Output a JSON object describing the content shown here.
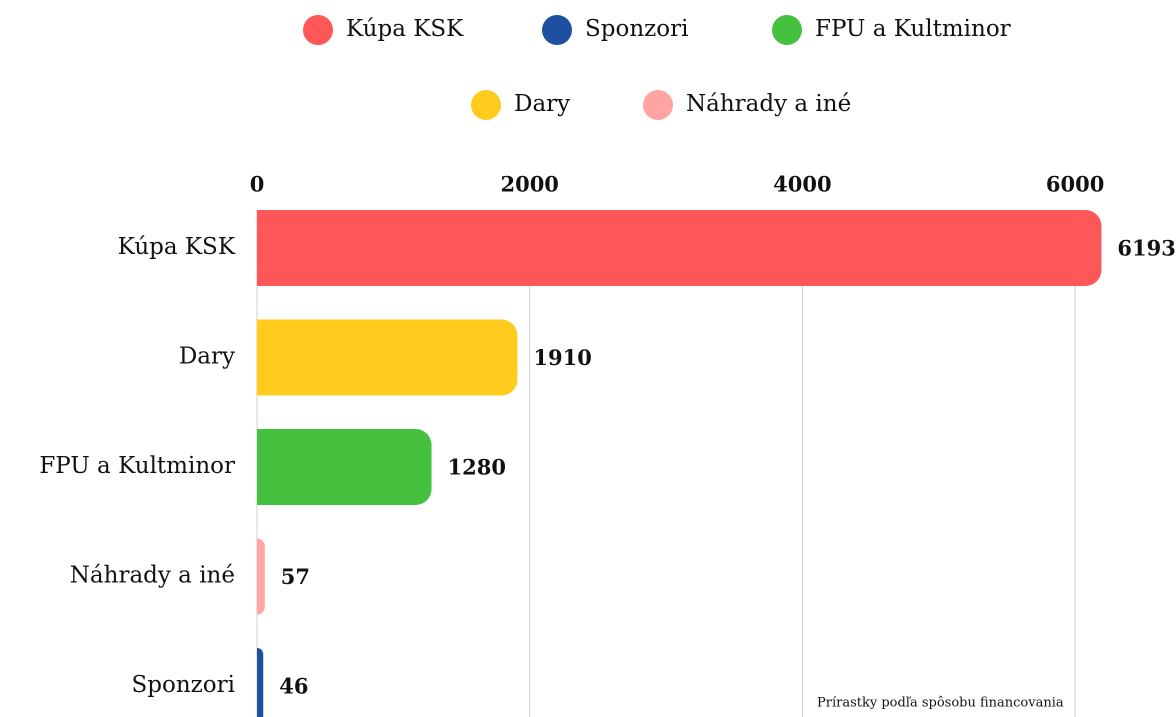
{
  "chart_data": {
    "type": "bar",
    "orientation": "horizontal",
    "categories": [
      "Kúpa KSK",
      "Dary",
      "FPU a Kultminor",
      "Náhrady a iné",
      "Sponzori"
    ],
    "values": [
      6193,
      1910,
      1280,
      57,
      46
    ],
    "colors": [
      "#ff5757",
      "#ffcc1e",
      "#45c13f",
      "#ffa3a3",
      "#1e4fa0"
    ],
    "legend": [
      {
        "name": "Kúpa KSK",
        "color": "#ff5757"
      },
      {
        "name": "Sponzori",
        "color": "#1e4fa0"
      },
      {
        "name": "FPU a Kultminor",
        "color": "#45c13f"
      },
      {
        "name": "Dary",
        "color": "#ffcc1e"
      },
      {
        "name": "Náhrady a iné",
        "color": "#ffa3a3"
      }
    ],
    "xlim": [
      0,
      6740
    ],
    "xticks": [
      0,
      2000,
      4000,
      6000
    ],
    "grid": true,
    "annotation": "Prírastky podľa spôsobu financovania"
  }
}
